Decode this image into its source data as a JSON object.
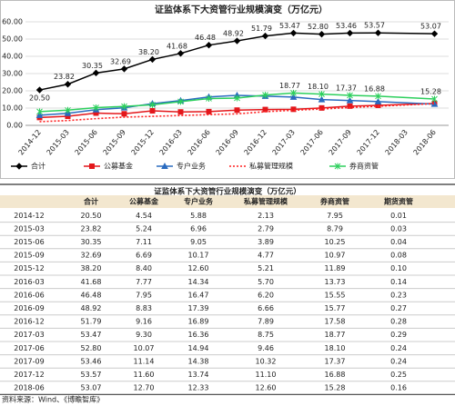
{
  "chart_data": {
    "type": "line",
    "title": "证监体系下大资管行业规模演变（万亿元）",
    "categories": [
      "2014-12",
      "2015-03",
      "2015-06",
      "2015-09",
      "2015-12",
      "2016-03",
      "2016-06",
      "2016-09",
      "2016-12",
      "2017-03",
      "2017-06",
      "2017-09",
      "2017-12",
      "2018-03",
      "2018-06"
    ],
    "series": [
      {
        "name": "合计",
        "color": "#000000",
        "marker": "diamond",
        "dash": false,
        "values": [
          20.5,
          23.82,
          30.35,
          32.69,
          38.2,
          41.68,
          46.48,
          48.92,
          51.79,
          53.47,
          52.8,
          53.46,
          53.57,
          null,
          53.07
        ],
        "value_labels": [
          "20.50",
          "23.82",
          "30.35",
          "32.69",
          "38.20",
          "41.68",
          "46.48",
          "48.92",
          "51.79",
          "53.47",
          "52.80",
          "53.46",
          "53.57",
          null,
          "53.07"
        ]
      },
      {
        "name": "公募基金",
        "color": "#e3171b",
        "marker": "square",
        "dash": false,
        "values": [
          4.54,
          5.24,
          7.11,
          6.69,
          8.4,
          7.77,
          7.95,
          8.83,
          9.16,
          9.3,
          10.07,
          11.14,
          11.6,
          null,
          12.7
        ]
      },
      {
        "name": "专户业务",
        "color": "#2a6bbf",
        "marker": "triangle",
        "dash": false,
        "values": [
          5.88,
          6.96,
          9.05,
          10.17,
          12.6,
          14.34,
          16.47,
          17.39,
          16.89,
          16.36,
          14.94,
          14.38,
          13.74,
          null,
          12.33
        ]
      },
      {
        "name": "私募管理规模",
        "color": "#ff2020",
        "marker": "none",
        "dash": true,
        "values": [
          2.13,
          2.79,
          3.89,
          4.77,
          5.21,
          5.7,
          6.2,
          6.66,
          7.89,
          8.75,
          9.46,
          10.32,
          11.1,
          null,
          12.6
        ]
      },
      {
        "name": "券商资管",
        "color": "#2ccf5c",
        "marker": "star",
        "dash": false,
        "values": [
          7.95,
          8.79,
          10.25,
          10.97,
          11.89,
          13.73,
          15.55,
          15.77,
          17.58,
          18.77,
          18.1,
          17.37,
          16.88,
          null,
          15.28
        ],
        "value_labels": [
          null,
          null,
          null,
          null,
          null,
          null,
          null,
          null,
          null,
          "18.77",
          "18.10",
          "17.37",
          "16.88",
          null,
          "15.28"
        ]
      }
    ],
    "ylim": [
      0,
      60
    ],
    "yticks": [
      {
        "value": 0,
        "label": "0.00"
      },
      {
        "value": 10,
        "label": "10.00"
      },
      {
        "value": 20,
        "label": "20.00"
      },
      {
        "value": 30,
        "label": "30.00"
      },
      {
        "value": 40,
        "label": "40.00"
      },
      {
        "value": 50,
        "label": "50.00"
      },
      {
        "value": 60,
        "label": "60.00"
      }
    ],
    "grid": true,
    "legend": "bottom"
  },
  "table": {
    "title": "证监体系下大资管行业规模演变（万亿元）",
    "columns": [
      "合计",
      "公募基金",
      "专户业务",
      "私募管理规模",
      "券商资管",
      "期货资管"
    ],
    "rows": [
      [
        "2014-12",
        "20.50",
        "4.54",
        "5.88",
        "2.13",
        "7.95",
        "0.01"
      ],
      [
        "2015-03",
        "23.82",
        "5.24",
        "6.96",
        "2.79",
        "8.79",
        "0.03"
      ],
      [
        "2015-06",
        "30.35",
        "7.11",
        "9.05",
        "3.89",
        "10.25",
        "0.04"
      ],
      [
        "2015-09",
        "32.69",
        "6.69",
        "10.17",
        "4.77",
        "10.97",
        "0.08"
      ],
      [
        "2015-12",
        "38.20",
        "8.40",
        "12.60",
        "5.21",
        "11.89",
        "0.10"
      ],
      [
        "2016-03",
        "41.68",
        "7.77",
        "14.34",
        "5.70",
        "13.73",
        "0.14"
      ],
      [
        "2016-06",
        "46.48",
        "7.95",
        "16.47",
        "6.20",
        "15.55",
        "0.23"
      ],
      [
        "2016-09",
        "48.92",
        "8.83",
        "17.39",
        "6.66",
        "15.77",
        "0.27"
      ],
      [
        "2016-12",
        "51.79",
        "9.16",
        "16.89",
        "7.89",
        "17.58",
        "0.28"
      ],
      [
        "2017-03",
        "53.47",
        "9.30",
        "16.36",
        "8.75",
        "18.77",
        "0.29"
      ],
      [
        "2017-06",
        "52.80",
        "10.07",
        "14.94",
        "9.46",
        "18.10",
        "0.24"
      ],
      [
        "2017-09",
        "53.46",
        "11.14",
        "14.38",
        "10.32",
        "17.37",
        "0.24"
      ],
      [
        "2017-12",
        "53.57",
        "11.60",
        "13.74",
        "11.10",
        "16.88",
        "0.25"
      ],
      [
        "2018-06",
        "53.07",
        "12.70",
        "12.33",
        "12.60",
        "15.28",
        "0.16"
      ]
    ],
    "source": "资料来源：Wind、《博瞻智库》"
  }
}
